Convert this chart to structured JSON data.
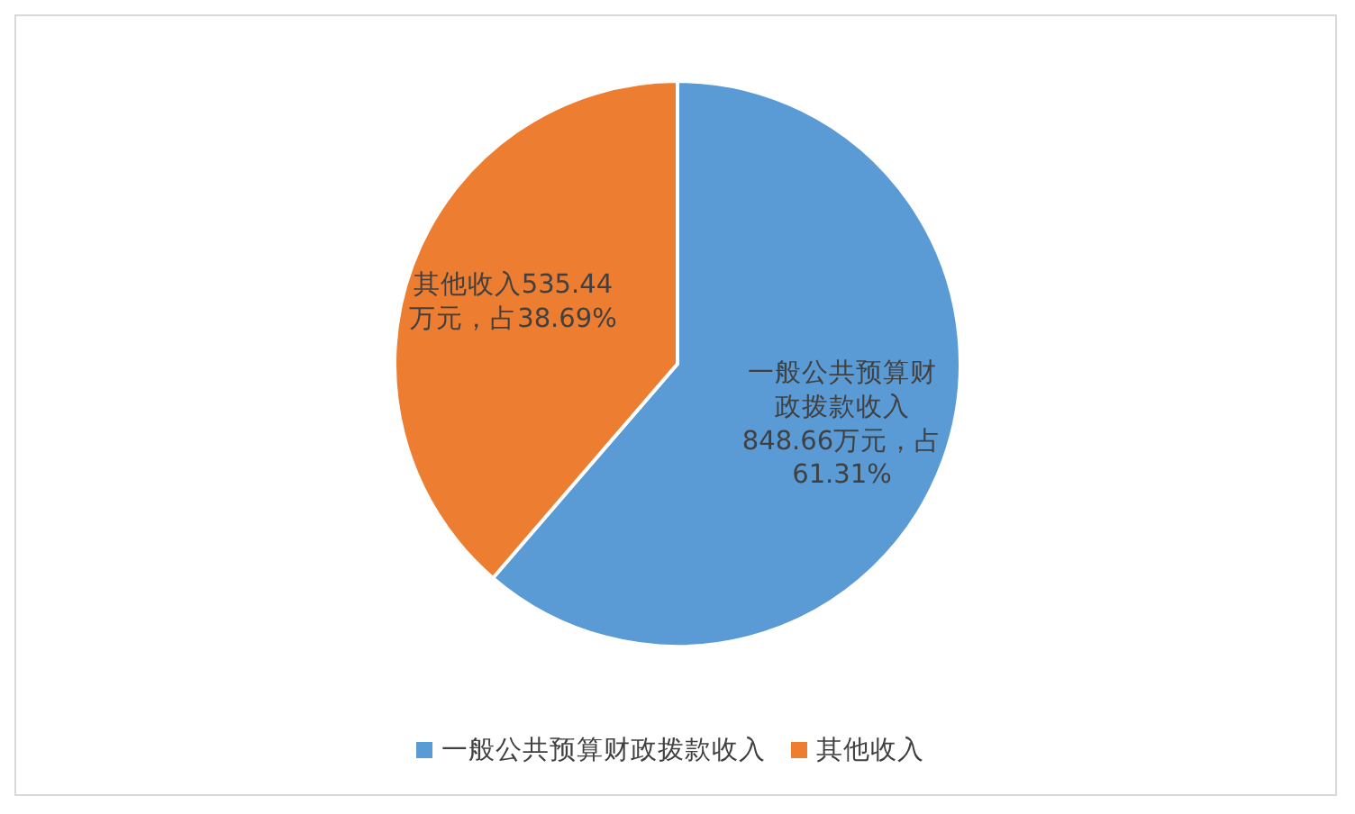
{
  "chart_data": {
    "type": "pie",
    "categories": [
      "一般公共预算财政拨款收入",
      "其他收入"
    ],
    "values": [
      848.66,
      535.44
    ],
    "colors": [
      "#5b9bd5",
      "#ed7d31"
    ],
    "value_labels": [
      "一般公共预算财政拨款收入848.66万元，占61.31%",
      "其他收入535.44万元，占38.69%"
    ],
    "legend": "bottom"
  }
}
